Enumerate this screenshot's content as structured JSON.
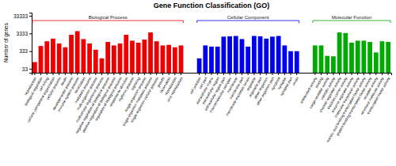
{
  "chart_data": {
    "type": "bar",
    "title": "Gene Function Classification (GO)",
    "ylabel": "Number of genes",
    "log": "y",
    "ylim": [
      20,
      50000
    ],
    "yticks": [
      33,
      333,
      3333,
      33333
    ],
    "series": [
      {
        "name": "Biological Process",
        "color": "#EE0000",
        "categories": [
          "reproduction",
          "biological regulation",
          "cell killing",
          "cellular component organization",
          "cellular process",
          "death",
          "developmental process",
          "immune system process",
          "localization",
          "metabolic process",
          "multi-organism process",
          "multicellular organismal process",
          "negative regulation of biological process",
          "positive regulation of biological process",
          "regulation of biological process",
          "response to stimulus",
          "rhythmic process",
          "signaling",
          "single-organism process",
          "single-organism metabolic process",
          "single-organism cellular process",
          "growth",
          "locomotion",
          "reproduction",
          "viral reproduction"
        ],
        "values": [
          80,
          650,
          1200,
          1700,
          900,
          550,
          2800,
          4500,
          1600,
          900,
          400,
          130,
          1100,
          700,
          900,
          2800,
          1300,
          1000,
          1500,
          3800,
          1200,
          700,
          750,
          550,
          700
        ]
      },
      {
        "name": "Cellular Component",
        "color": "#0000EE",
        "categories": [
          "cell junction",
          "cell part",
          "extracellular matrix",
          "extracellular region",
          "extracellular region part",
          "macromolecular complex",
          "membrane",
          "membrane part",
          "membrane-enclosed lumen",
          "organelle",
          "organelle part",
          "other organism",
          "other organism part",
          "symplast",
          "synapse",
          "synapse part",
          "virion"
        ],
        "values": [
          130,
          700,
          600,
          600,
          2200,
          2300,
          2400,
          1600,
          600,
          2400,
          2300,
          1700,
          2200,
          2400,
          700,
          330,
          330
        ]
      },
      {
        "name": "Molecular Function",
        "color": "#00AA00",
        "categories": [
          "antioxidant activity",
          "binding",
          "cargo receptor activity",
          "catalytic activity",
          "channel regulator activity",
          "electron carrier activity",
          "enzyme regulator activity",
          "molecular transducer activity",
          "nucleic acid binding transcription factor activity",
          "protein binding transcription factor activity",
          "receptor activity",
          "structural molecule activity",
          "transcription factor activity"
        ],
        "values": [
          700,
          700,
          180,
          170,
          3800,
          3500,
          1000,
          1300,
          1300,
          1100,
          280,
          1200,
          1100
        ]
      }
    ]
  }
}
